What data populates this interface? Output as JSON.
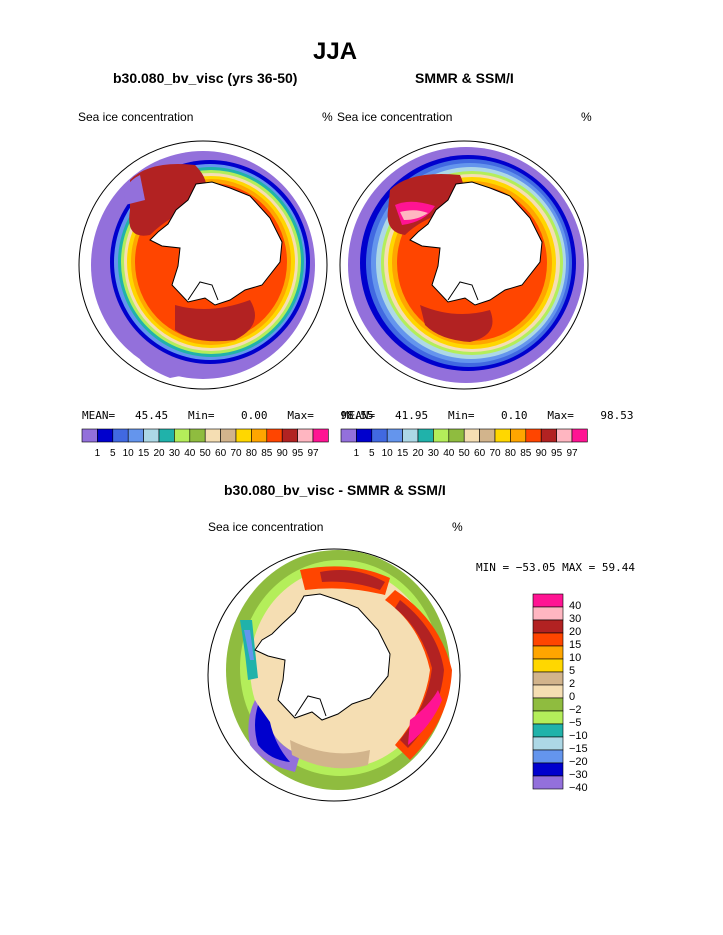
{
  "page": {
    "title": "JJA"
  },
  "panels": [
    {
      "id": "model",
      "subtitle": "b30.080_bv_visc (yrs 36-50)",
      "left_label": "Sea ice concentration",
      "right_label": "%",
      "stats": {
        "mean_label": "MEAN=",
        "mean": "45.45",
        "min_label": "Min=",
        "min": "0.00",
        "max_label": "Max=",
        "max": "98.55"
      }
    },
    {
      "id": "obs",
      "subtitle": "SMMR & SSM/I",
      "left_label": "Sea ice concentration",
      "right_label": "%",
      "stats": {
        "mean_label": "MEAN=",
        "mean": "41.95",
        "min_label": "Min=",
        "min": "0.10",
        "max_label": "Max=",
        "max": "98.53"
      }
    }
  ],
  "concentration_scale": {
    "labels": [
      "1",
      "5",
      "10",
      "15",
      "20",
      "30",
      "40",
      "50",
      "60",
      "70",
      "80",
      "85",
      "90",
      "95",
      "97"
    ],
    "colors": [
      "#9370db",
      "#0000cd",
      "#4169e1",
      "#6495ed",
      "#add8e6",
      "#20b2aa",
      "#b4ee5a",
      "#8fbc3f",
      "#f5deb3",
      "#d2b48c",
      "#ffd700",
      "#ffa500",
      "#ff4500",
      "#b22222",
      "#ffb6c1",
      "#ff1493"
    ]
  },
  "difference": {
    "subtitle": "b30.080_bv_visc - SMMR & SSM/I",
    "left_label": "Sea ice concentration",
    "right_label": "%",
    "minmax": "MIN = −53.05 MAX =  59.44",
    "scale_labels": [
      "40",
      "30",
      "20",
      "15",
      "10",
      "5",
      "2",
      "0",
      "−2",
      "−5",
      "−10",
      "−15",
      "−20",
      "−30",
      "−40"
    ],
    "scale_colors": [
      "#ff1493",
      "#ffb6c1",
      "#b22222",
      "#ff4500",
      "#ffa500",
      "#ffd700",
      "#d2b48c",
      "#f5deb3",
      "#8fbc3f",
      "#b4ee5a",
      "#20b2aa",
      "#add8e6",
      "#6495ed",
      "#0000cd",
      "#9370db"
    ]
  }
}
